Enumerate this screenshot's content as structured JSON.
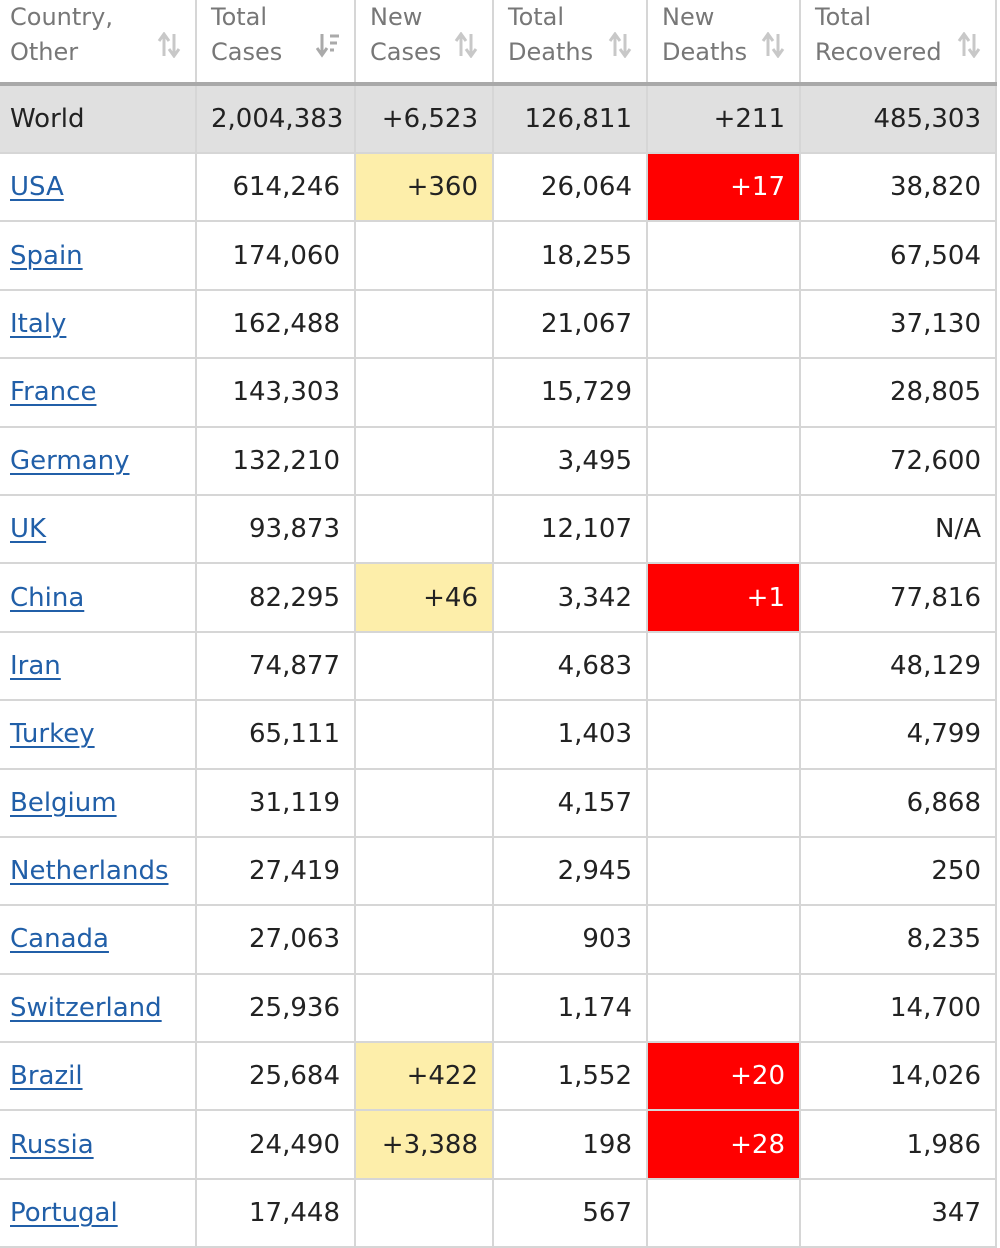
{
  "colors": {
    "new_cases_highlight": "#fdeeaa",
    "new_deaths_highlight": "#ff0000",
    "link": "#215fa8",
    "world_row_bg": "#e0e0e0"
  },
  "headers": [
    {
      "line1": "Country,",
      "line2": "Other",
      "sort_icon": "sort-updown-icon"
    },
    {
      "line1": "Total",
      "line2": "Cases",
      "sort_icon": "sort-desc-active-icon"
    },
    {
      "line1": "New",
      "line2": "Cases",
      "sort_icon": "sort-updown-icon"
    },
    {
      "line1": "Total",
      "line2": "Deaths",
      "sort_icon": "sort-updown-icon"
    },
    {
      "line1": "New",
      "line2": "Deaths",
      "sort_icon": "sort-updown-icon"
    },
    {
      "line1": "Total",
      "line2": "Recovered",
      "sort_icon": "sort-updown-icon"
    }
  ],
  "world": {
    "country": "World",
    "total_cases": "2,004,383",
    "new_cases": "+6,523",
    "total_deaths": "126,811",
    "new_deaths": "+211",
    "total_recovered": "485,303"
  },
  "rows": [
    {
      "country": "USA",
      "total_cases": "614,246",
      "new_cases": "+360",
      "total_deaths": "26,064",
      "new_deaths": "+17",
      "total_recovered": "38,820"
    },
    {
      "country": "Spain",
      "total_cases": "174,060",
      "new_cases": "",
      "total_deaths": "18,255",
      "new_deaths": "",
      "total_recovered": "67,504"
    },
    {
      "country": "Italy",
      "total_cases": "162,488",
      "new_cases": "",
      "total_deaths": "21,067",
      "new_deaths": "",
      "total_recovered": "37,130"
    },
    {
      "country": "France",
      "total_cases": "143,303",
      "new_cases": "",
      "total_deaths": "15,729",
      "new_deaths": "",
      "total_recovered": "28,805"
    },
    {
      "country": "Germany",
      "total_cases": "132,210",
      "new_cases": "",
      "total_deaths": "3,495",
      "new_deaths": "",
      "total_recovered": "72,600"
    },
    {
      "country": "UK",
      "total_cases": "93,873",
      "new_cases": "",
      "total_deaths": "12,107",
      "new_deaths": "",
      "total_recovered": "N/A"
    },
    {
      "country": "China",
      "total_cases": "82,295",
      "new_cases": "+46",
      "total_deaths": "3,342",
      "new_deaths": "+1",
      "total_recovered": "77,816"
    },
    {
      "country": "Iran",
      "total_cases": "74,877",
      "new_cases": "",
      "total_deaths": "4,683",
      "new_deaths": "",
      "total_recovered": "48,129"
    },
    {
      "country": "Turkey",
      "total_cases": "65,111",
      "new_cases": "",
      "total_deaths": "1,403",
      "new_deaths": "",
      "total_recovered": "4,799"
    },
    {
      "country": "Belgium",
      "total_cases": "31,119",
      "new_cases": "",
      "total_deaths": "4,157",
      "new_deaths": "",
      "total_recovered": "6,868"
    },
    {
      "country": "Netherlands",
      "total_cases": "27,419",
      "new_cases": "",
      "total_deaths": "2,945",
      "new_deaths": "",
      "total_recovered": "250"
    },
    {
      "country": "Canada",
      "total_cases": "27,063",
      "new_cases": "",
      "total_deaths": "903",
      "new_deaths": "",
      "total_recovered": "8,235"
    },
    {
      "country": "Switzerland",
      "total_cases": "25,936",
      "new_cases": "",
      "total_deaths": "1,174",
      "new_deaths": "",
      "total_recovered": "14,700"
    },
    {
      "country": "Brazil",
      "total_cases": "25,684",
      "new_cases": "+422",
      "total_deaths": "1,552",
      "new_deaths": "+20",
      "total_recovered": "14,026"
    },
    {
      "country": "Russia",
      "total_cases": "24,490",
      "new_cases": "+3,388",
      "total_deaths": "198",
      "new_deaths": "+28",
      "total_recovered": "1,986"
    },
    {
      "country": "Portugal",
      "total_cases": "17,448",
      "new_cases": "",
      "total_deaths": "567",
      "new_deaths": "",
      "total_recovered": "347"
    }
  ]
}
